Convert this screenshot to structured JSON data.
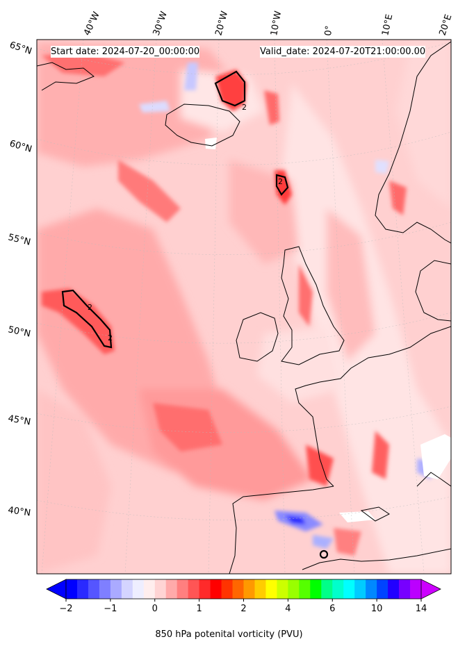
{
  "header": {
    "start_date": "Start date: 2024-07-20_00:00:00",
    "valid_date": "Valid_date: 2024-07-20T21:00:00.00"
  },
  "map": {
    "lon_labels": [
      "40°W",
      "30°W",
      "20°W",
      "10°W",
      "0°",
      "10°E",
      "20°E"
    ],
    "lat_labels": [
      "65°N",
      "60°N",
      "55°N",
      "50°N",
      "45°N",
      "40°N"
    ],
    "contour_label": "2",
    "region": "North Atlantic, British Isles, Iberia, Scandinavia"
  },
  "colorbar": {
    "title": "850 hPa potenital vorticity (PVU)",
    "ticks": [
      "−2",
      "−1",
      "0",
      "1",
      "2",
      "4",
      "6",
      "10",
      "14"
    ],
    "colors": [
      "#0000ff",
      "#2a2aff",
      "#5555ff",
      "#7f7fff",
      "#aaaaff",
      "#d4d4ff",
      "#eeeeff",
      "#ffeeee",
      "#ffd4d4",
      "#ffaaaa",
      "#ff7f7f",
      "#ff5555",
      "#ff2a2a",
      "#ff0000",
      "#ff3300",
      "#ff6600",
      "#ff9900",
      "#ffcc00",
      "#ffff00",
      "#ccff00",
      "#99ff00",
      "#55ff00",
      "#00ff00",
      "#00ff88",
      "#00ffcc",
      "#00ffff",
      "#00ccff",
      "#0088ff",
      "#0044ff",
      "#2200ff",
      "#7700ff",
      "#bb00ff"
    ],
    "min_color": "#0000ff",
    "max_color": "#cc00ff"
  }
}
